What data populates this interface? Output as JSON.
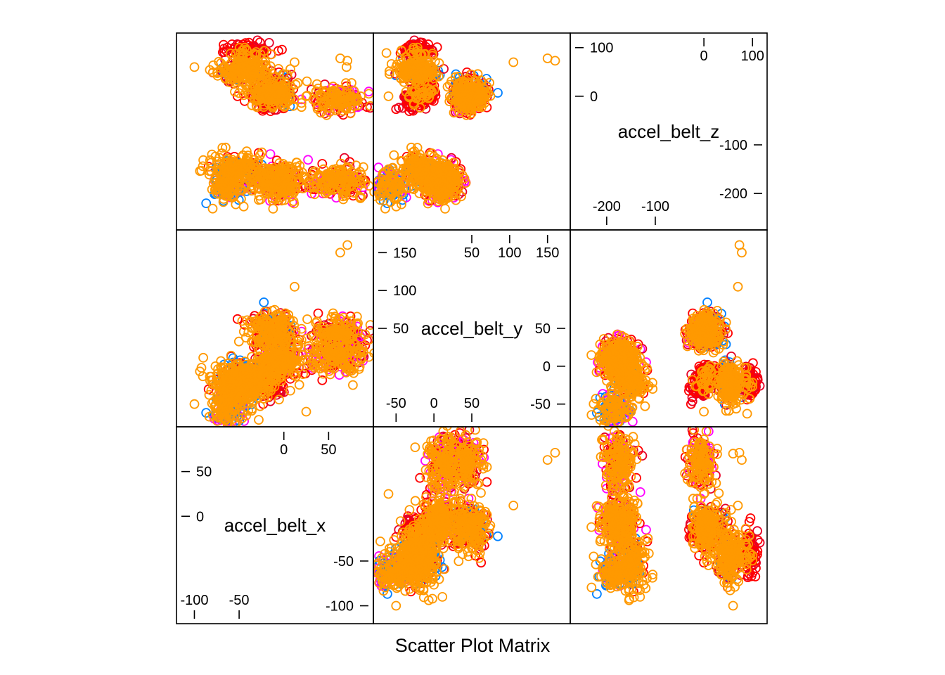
{
  "chart_data": {
    "type": "scatter",
    "title": "Scatter Plot Matrix",
    "variables": [
      {
        "name": "accel_belt_x",
        "range": [
          -120,
          100
        ],
        "ticks_a": {
          "values": [
            -100,
            -50
          ],
          "labels": [
            "-100",
            "-50"
          ]
        },
        "ticks_b": {
          "values": [
            0,
            50
          ],
          "labels": [
            "0",
            "50"
          ]
        },
        "ticks_left": {
          "values": [
            0,
            50
          ],
          "labels": [
            "0",
            "50"
          ]
        },
        "ticks_right": {
          "values": [
            -100,
            -50
          ],
          "labels": [
            "-100",
            "-50"
          ]
        }
      },
      {
        "name": "accel_belt_y",
        "range": [
          -80,
          180
        ],
        "ticks_a": {
          "values": [
            -50,
            0,
            50
          ],
          "labels": [
            "-50",
            "0",
            "50"
          ]
        },
        "ticks_b": {
          "values": [
            50,
            100,
            150
          ],
          "labels": [
            "50",
            "100",
            "150"
          ]
        },
        "ticks_left": {
          "values": [
            50,
            100,
            150
          ],
          "labels": [
            "50",
            "100",
            "150"
          ]
        },
        "ticks_right": {
          "values": [
            -50,
            0,
            50
          ],
          "labels": [
            "-50",
            "0",
            "50"
          ]
        }
      },
      {
        "name": "accel_belt_z",
        "range": [
          -275,
          130
        ],
        "ticks_a": {
          "values": [
            -200,
            -100
          ],
          "labels": [
            "-200",
            "-100"
          ]
        },
        "ticks_b": {
          "values": [
            0,
            100
          ],
          "labels": [
            "0",
            "100"
          ]
        },
        "ticks_left": {
          "values": [
            0,
            100
          ],
          "labels": [
            "0",
            "100"
          ]
        },
        "ticks_right": {
          "values": [
            -200,
            -100
          ],
          "labels": [
            "-200",
            "-100"
          ]
        }
      }
    ],
    "group_colors": [
      "#0080ff",
      "#ff00ff",
      "#e60026",
      "#ff0000",
      "#ff9900"
    ],
    "point_style": "open-circle",
    "clusters": [
      {
        "x": -12,
        "y": 47,
        "z": 5,
        "sx": 14,
        "sy": 12,
        "sz": 15,
        "n": 260,
        "colors": [
          4,
          4,
          4,
          4,
          2,
          3,
          0
        ]
      },
      {
        "x": 60,
        "y": 45,
        "z": -6,
        "sx": 14,
        "sy": 9,
        "sz": 13,
        "n": 200,
        "colors": [
          4,
          4,
          4,
          4,
          3,
          2,
          1
        ]
      },
      {
        "x": -5,
        "y": 8,
        "z": -175,
        "sx": 14,
        "sy": 12,
        "sz": 18,
        "n": 300,
        "colors": [
          4,
          4,
          4,
          4,
          4,
          3,
          2,
          1
        ]
      },
      {
        "x": 60,
        "y": 14,
        "z": -175,
        "sx": 16,
        "sy": 12,
        "sz": 16,
        "n": 230,
        "colors": [
          4,
          4,
          4,
          4,
          3,
          2,
          1
        ]
      },
      {
        "x": -45,
        "y": -22,
        "z": 52,
        "sx": 15,
        "sy": 14,
        "sz": 12,
        "n": 230,
        "colors": [
          4,
          4,
          4,
          4,
          4,
          2,
          0
        ]
      },
      {
        "x": -18,
        "y": -10,
        "z": 8,
        "sx": 8,
        "sy": 7,
        "sz": 10,
        "n": 100,
        "colors": [
          3,
          3,
          3,
          2,
          4
        ]
      },
      {
        "x": -40,
        "y": -20,
        "z": 95,
        "sx": 12,
        "sy": 10,
        "sz": 8,
        "n": 110,
        "colors": [
          3,
          3,
          3,
          2,
          4
        ]
      },
      {
        "x": -62,
        "y": -58,
        "z": -185,
        "sx": 10,
        "sy": 10,
        "sz": 15,
        "n": 160,
        "colors": [
          4,
          4,
          4,
          0,
          0,
          1
        ]
      },
      {
        "x": -50,
        "y": -20,
        "z": -150,
        "sx": 15,
        "sy": 12,
        "sz": 18,
        "n": 200,
        "colors": [
          4,
          4,
          4,
          4,
          3,
          0
        ]
      },
      {
        "x": -14,
        "y": -26,
        "z": -6,
        "sx": 8,
        "sy": 8,
        "sz": 12,
        "n": 90,
        "colors": [
          3,
          3,
          2,
          4
        ]
      }
    ],
    "outliers": [
      {
        "x": -100,
        "y": -50,
        "z": 60
      },
      {
        "x": 71,
        "y": 160,
        "z": 73
      },
      {
        "x": 63,
        "y": 150,
        "z": 78
      },
      {
        "x": 95,
        "y": 35,
        "z": 5
      },
      {
        "x": -68,
        "y": -30,
        "z": -190
      },
      {
        "x": 12,
        "y": 105,
        "z": 70
      },
      {
        "x": 55,
        "y": 70,
        "z": 20
      },
      {
        "x": -65,
        "y": -70,
        "z": -205
      },
      {
        "x": -70,
        "y": -60,
        "z": -150
      },
      {
        "x": 25,
        "y": -60,
        "z": 0
      },
      {
        "x": 70,
        "y": -100,
        "z": 60
      },
      {
        "x": 35,
        "y": 0,
        "z": 170
      }
    ]
  }
}
